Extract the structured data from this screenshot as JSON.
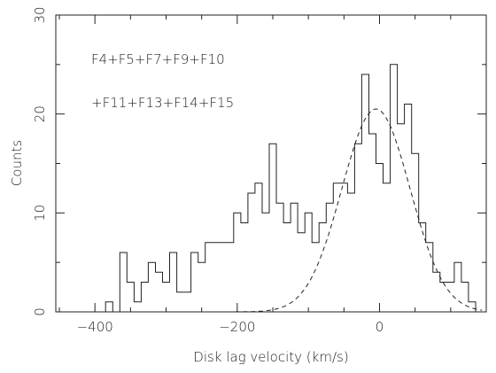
{
  "chart_data": {
    "type": "histogram",
    "title": "",
    "xlabel": "Disk lag velocity (km/s)",
    "ylabel": "Counts",
    "xlim": [
      -455,
      150
    ],
    "ylim": [
      0,
      30
    ],
    "xticks_major": [
      -400,
      -200,
      0
    ],
    "xticks_minor_step": 50,
    "yticks_major": [
      0,
      10,
      20,
      30
    ],
    "yticks_minor_step": 5,
    "grid": false,
    "annotations": [
      {
        "line": "F4+F5+F7+F9+F10"
      },
      {
        "line": "+F11+F13+F14+F15"
      }
    ],
    "series": [
      {
        "style": "steps",
        "bin_width": 10,
        "x_edges": [
          -455,
          -445,
          -435,
          -425,
          -415,
          -405,
          -395,
          -385,
          -375,
          -365,
          -355,
          -345,
          -335,
          -325,
          -315,
          -305,
          -295,
          -285,
          -275,
          -265,
          -255,
          -245,
          -235,
          -225,
          -215,
          -205,
          -195,
          -185,
          -175,
          -165,
          -155,
          -145,
          -135,
          -125,
          -115,
          -105,
          -95,
          -85,
          -75,
          -65,
          -55,
          -45,
          -35,
          -25,
          -15,
          -5,
          5,
          15,
          25,
          35,
          45,
          55,
          65,
          75,
          85,
          95,
          105,
          115,
          125,
          135,
          145
        ],
        "counts": [
          0,
          0,
          0,
          0,
          0,
          0,
          0,
          1,
          0,
          6,
          3,
          1,
          3,
          5,
          4,
          3,
          6,
          2,
          2,
          6,
          5,
          7,
          7,
          7,
          7,
          10,
          9,
          12,
          13,
          10,
          17,
          11,
          9,
          11,
          8,
          10,
          7,
          9,
          11,
          13,
          13,
          12,
          17,
          24,
          18,
          15,
          13,
          25,
          19,
          21,
          16,
          9,
          7,
          4,
          3,
          3,
          5,
          3,
          1,
          0
        ]
      },
      {
        "style": "dashed",
        "fit": "gaussian",
        "peak": 20.5,
        "center": -5,
        "sigma": 48
      }
    ]
  }
}
